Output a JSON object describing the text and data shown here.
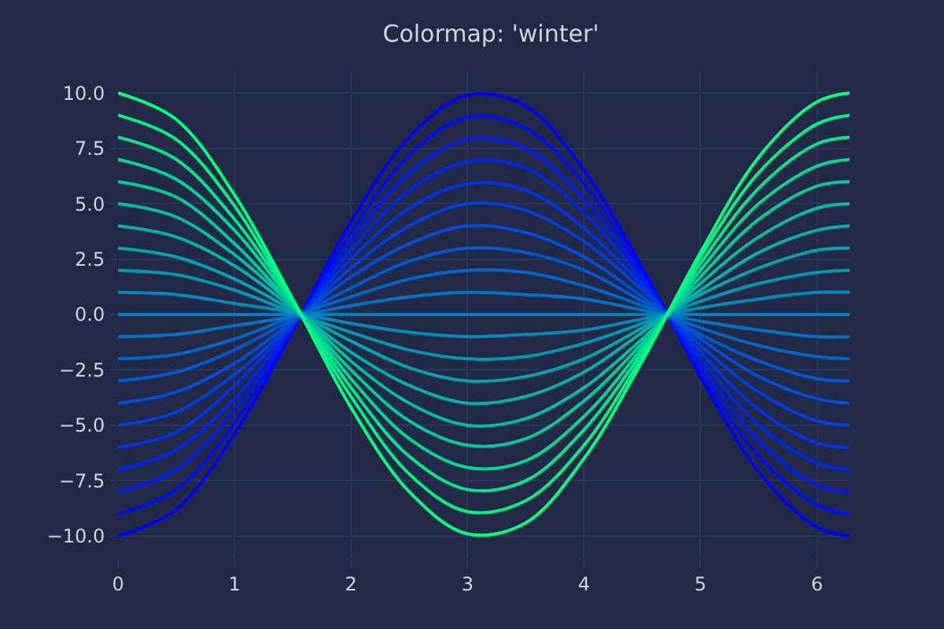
{
  "chart_data": {
    "type": "line",
    "title": "Colormap: 'winter'",
    "x": [
      0,
      0.5,
      1,
      1.5,
      2,
      2.5,
      3,
      3.5,
      4,
      4.5,
      5,
      5.5,
      6,
      6.28
    ],
    "xlim": [
      0,
      6.28
    ],
    "xticks": [
      0,
      1,
      2,
      3,
      4,
      5,
      6
    ],
    "ylim": [
      -11,
      11
    ],
    "yticks": [
      {
        "value": -10,
        "label": "−10.0"
      },
      {
        "value": -7.5,
        "label": "−7.5"
      },
      {
        "value": -5,
        "label": "−5.0"
      },
      {
        "value": -2.5,
        "label": "−2.5"
      },
      {
        "value": 0,
        "label": "0.0"
      },
      {
        "value": 2.5,
        "label": "2.5"
      },
      {
        "value": 5,
        "label": "5.0"
      },
      {
        "value": 7.5,
        "label": "7.5"
      },
      {
        "value": 10,
        "label": "10.0"
      }
    ],
    "grid": true,
    "marker": "none",
    "line_style": "solid",
    "series": [
      {
        "color": "#0000ff",
        "values": [
          -10,
          -8.8,
          -5.4,
          -0.7,
          4.2,
          8.0,
          9.9,
          9.4,
          6.5,
          2.1,
          -2.8,
          -7.1,
          -9.6,
          -10
        ]
      },
      {
        "color": "#000df9",
        "values": [
          -9,
          -7.9,
          -4.9,
          -0.6,
          3.7,
          7.2,
          8.9,
          8.4,
          5.9,
          1.9,
          -2.6,
          -6.4,
          -8.6,
          -9
        ]
      },
      {
        "color": "#001af2",
        "values": [
          -8,
          -7.0,
          -4.3,
          -0.6,
          3.3,
          6.4,
          7.9,
          7.5,
          5.2,
          1.7,
          -2.3,
          -5.7,
          -7.7,
          -8
        ]
      },
      {
        "color": "#0026ec",
        "values": [
          -7,
          -6.1,
          -3.8,
          -0.5,
          2.9,
          5.6,
          6.9,
          6.6,
          4.6,
          1.5,
          -2.0,
          -5.0,
          -6.7,
          -7
        ]
      },
      {
        "color": "#0033e6",
        "values": [
          -6,
          -5.3,
          -3.2,
          -0.4,
          2.5,
          4.8,
          5.9,
          5.6,
          3.9,
          1.3,
          -1.7,
          -4.3,
          -5.8,
          -6
        ]
      },
      {
        "color": "#0040df",
        "values": [
          -5,
          -4.4,
          -2.7,
          -0.4,
          2.1,
          4.0,
          5.0,
          4.7,
          3.3,
          1.1,
          -1.4,
          -3.5,
          -4.8,
          -5
        ]
      },
      {
        "color": "#004dd9",
        "values": [
          -4,
          -3.5,
          -2.2,
          -0.3,
          1.7,
          3.2,
          4.0,
          3.7,
          2.6,
          0.8,
          -1.1,
          -2.8,
          -3.8,
          -4
        ]
      },
      {
        "color": "#0059d2",
        "values": [
          -3,
          -2.6,
          -1.6,
          -0.2,
          1.2,
          2.4,
          3.0,
          2.8,
          2.0,
          0.6,
          -0.9,
          -2.1,
          -2.9,
          -3
        ]
      },
      {
        "color": "#0066cc",
        "values": [
          -2,
          -1.8,
          -1.1,
          -0.1,
          0.8,
          1.6,
          2.0,
          1.9,
          1.3,
          0.4,
          -0.6,
          -1.4,
          -1.9,
          -2
        ]
      },
      {
        "color": "#0073c6",
        "values": [
          -1,
          -0.9,
          -0.5,
          -0.1,
          0.4,
          0.8,
          1.0,
          0.9,
          0.7,
          0.2,
          -0.3,
          -0.7,
          -1.0,
          -1
        ]
      },
      {
        "color": "#0080bf",
        "values": [
          0,
          0,
          0,
          0,
          0,
          0,
          0,
          0,
          0,
          0,
          0,
          0,
          0,
          0
        ]
      },
      {
        "color": "#008cb9",
        "values": [
          1,
          0.9,
          0.5,
          0.1,
          -0.4,
          -0.8,
          -1.0,
          -0.9,
          -0.7,
          -0.2,
          0.3,
          0.7,
          1.0,
          1
        ]
      },
      {
        "color": "#0099b3",
        "values": [
          2,
          1.8,
          1.1,
          0.1,
          -0.8,
          -1.6,
          -2.0,
          -1.9,
          -1.3,
          -0.4,
          0.6,
          1.4,
          1.9,
          2
        ]
      },
      {
        "color": "#00a6ac",
        "values": [
          3,
          2.6,
          1.6,
          0.2,
          -1.2,
          -2.4,
          -3.0,
          -2.8,
          -2.0,
          -0.6,
          0.9,
          2.1,
          2.9,
          3
        ]
      },
      {
        "color": "#00b3a6",
        "values": [
          4,
          3.5,
          2.2,
          0.3,
          -1.7,
          -3.2,
          -4.0,
          -3.7,
          -2.6,
          -0.8,
          1.1,
          2.8,
          3.8,
          4
        ]
      },
      {
        "color": "#00bf9f",
        "values": [
          5,
          4.4,
          2.7,
          0.4,
          -2.1,
          -4.0,
          -5.0,
          -4.7,
          -3.3,
          -1.1,
          1.4,
          3.5,
          4.8,
          5
        ]
      },
      {
        "color": "#00cc99",
        "values": [
          6,
          5.3,
          3.2,
          0.4,
          -2.5,
          -4.8,
          -5.9,
          -5.6,
          -3.9,
          -1.3,
          1.7,
          4.3,
          5.8,
          6
        ]
      },
      {
        "color": "#00d993",
        "values": [
          7,
          6.1,
          3.8,
          0.5,
          -2.9,
          -5.6,
          -6.9,
          -6.6,
          -4.6,
          -1.5,
          2.0,
          5.0,
          6.7,
          7
        ]
      },
      {
        "color": "#00e68c",
        "values": [
          8,
          7.0,
          4.3,
          0.6,
          -3.3,
          -6.4,
          -7.9,
          -7.5,
          -5.2,
          -1.7,
          2.3,
          5.7,
          7.7,
          8
        ]
      },
      {
        "color": "#00f286",
        "values": [
          9,
          7.9,
          4.9,
          0.6,
          -3.7,
          -7.2,
          -8.9,
          -8.4,
          -5.9,
          -1.9,
          2.6,
          6.4,
          8.6,
          9
        ]
      },
      {
        "color": "#00ff80",
        "values": [
          10,
          8.8,
          5.4,
          0.7,
          -4.2,
          -8.0,
          -9.9,
          -9.4,
          -6.5,
          -2.1,
          2.8,
          7.1,
          9.6,
          10
        ]
      }
    ]
  }
}
